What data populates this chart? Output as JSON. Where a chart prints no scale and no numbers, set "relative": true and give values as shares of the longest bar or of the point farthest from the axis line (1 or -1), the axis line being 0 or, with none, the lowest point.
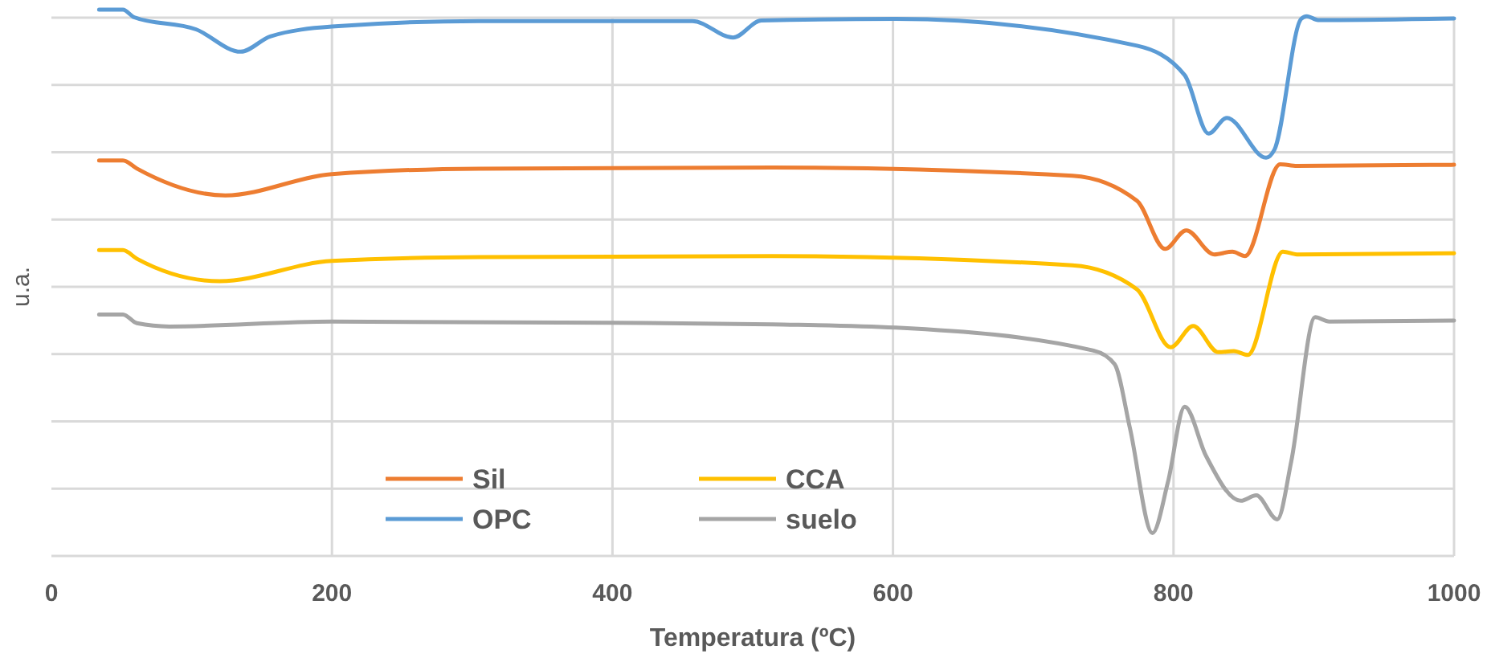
{
  "chart_data": {
    "type": "line",
    "xlabel": "Temperatura (ºC)",
    "ylabel": "u.a.",
    "relative": true,
    "xlim": [
      0,
      1000
    ],
    "xticks": [
      0,
      200,
      400,
      600,
      800,
      1000
    ],
    "grid": true,
    "legend": "bottom",
    "marker": "none",
    "line_style": "solid",
    "series": [
      {
        "name": "Sil",
        "color": "#ed7d31",
        "x": [
          34,
          51,
          61,
          124,
          200,
          305,
          514,
          728,
          774,
          794,
          809,
          829,
          842,
          851,
          876,
          888,
          1000
        ],
        "values": [
          0.724,
          0.724,
          0.709,
          0.66,
          0.699,
          0.709,
          0.711,
          0.696,
          0.65,
          0.562,
          0.596,
          0.552,
          0.557,
          0.549,
          0.717,
          0.714,
          0.716
        ]
      },
      {
        "name": "CCA",
        "color": "#ffc000",
        "x": [
          34,
          51,
          61,
          120,
          200,
          305,
          514,
          728,
          774,
          798,
          814,
          832,
          843,
          853,
          878,
          888,
          1000
        ],
        "values": [
          0.56,
          0.56,
          0.544,
          0.503,
          0.54,
          0.547,
          0.549,
          0.532,
          0.488,
          0.382,
          0.421,
          0.373,
          0.375,
          0.368,
          0.557,
          0.552,
          0.554
        ]
      },
      {
        "name": "OPC",
        "color": "#5b9bd5",
        "x": [
          34,
          51,
          59,
          103,
          135,
          156,
          200,
          305,
          457,
          486,
          506,
          602,
          774,
          808,
          825,
          838,
          866,
          872,
          891,
          895,
          903,
          1000
        ],
        "values": [
          1,
          1,
          0.986,
          0.964,
          0.923,
          0.951,
          0.969,
          0.979,
          0.979,
          0.949,
          0.98,
          0.983,
          0.934,
          0.88,
          0.773,
          0.802,
          0.729,
          0.744,
          0.983,
          0.988,
          0.981,
          0.984
        ]
      },
      {
        "name": "suelo",
        "color": "#a5a5a5",
        "x": [
          34,
          51,
          61,
          84,
          200,
          400,
          514,
          602,
          743,
          758,
          769,
          785,
          796,
          808,
          823,
          848,
          859,
          874,
          884,
          901,
          911,
          1000
        ],
        "values": [
          0.442,
          0.442,
          0.426,
          0.42,
          0.429,
          0.427,
          0.424,
          0.418,
          0.376,
          0.351,
          0.233,
          0.042,
          0.135,
          0.273,
          0.184,
          0.101,
          0.111,
          0.067,
          0.174,
          0.437,
          0.429,
          0.431
        ]
      }
    ]
  }
}
